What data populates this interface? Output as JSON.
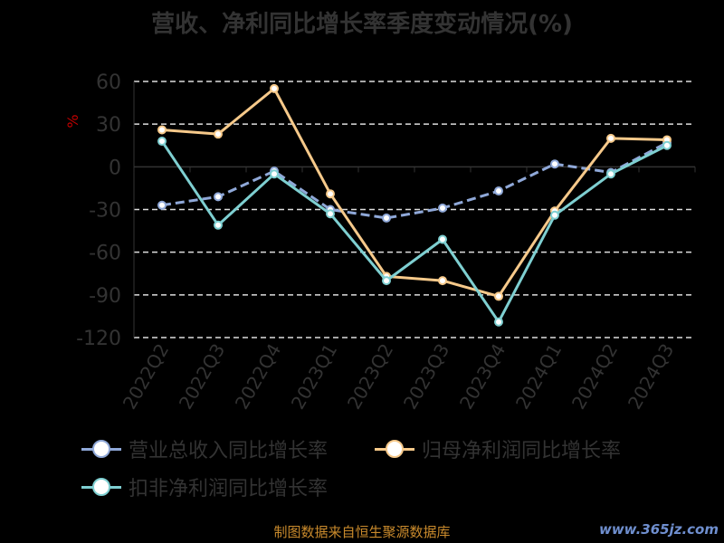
{
  "title": "营收、净利同比增长率季度变动情况(%)",
  "source": "制图数据来自恒生聚源数据库",
  "watermark": "www.365jz.com",
  "chart_data": {
    "type": "line",
    "title": "营收、净利同比增长率季度变动情况(%)",
    "ylabel": "%",
    "ylim": [
      -120,
      60
    ],
    "yticks": [
      60,
      30,
      0,
      -30,
      -60,
      -90,
      -120
    ],
    "grid": true,
    "legend_placement": "bottom",
    "categories": [
      "2022Q2",
      "2022Q3",
      "2022Q4",
      "2023Q1",
      "2023Q2",
      "2023Q3",
      "2023Q4",
      "2024Q1",
      "2024Q2",
      "2024Q3"
    ],
    "series": [
      {
        "name": "营业总收入同比增长率",
        "color": "#8fa8d8",
        "dashed": true,
        "values": [
          -27,
          -21,
          -3,
          -30,
          -36,
          -29,
          -17,
          2,
          -4,
          17
        ]
      },
      {
        "name": "归母净利润同比增长率",
        "color": "#f6c98a",
        "dashed": false,
        "values": [
          26,
          23,
          55,
          -19,
          -77,
          -80,
          -91,
          -31,
          20,
          19
        ]
      },
      {
        "name": "扣非净利润同比增长率",
        "color": "#7ecfd1",
        "dashed": false,
        "values": [
          18,
          -41,
          -5,
          -33,
          -80,
          -51,
          -109,
          -34,
          -5,
          15
        ]
      }
    ]
  }
}
